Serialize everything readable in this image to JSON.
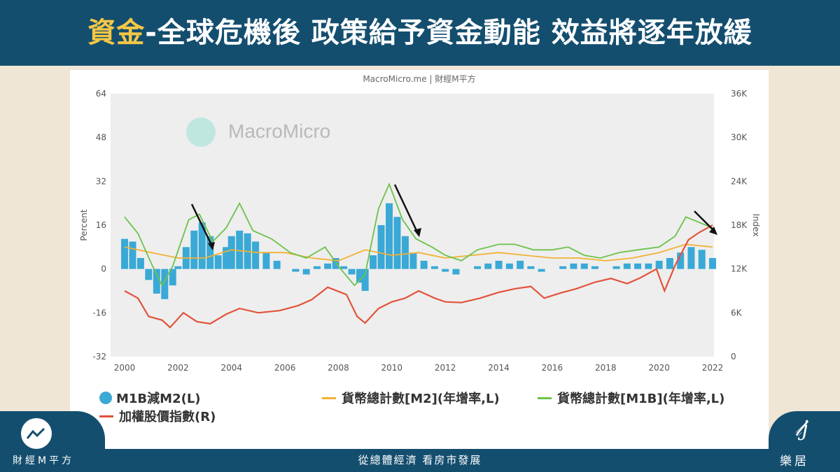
{
  "header": {
    "title_highlight": "資金",
    "title_rest": "-全球危機後 政策給予資金動能 效益將逐年放緩"
  },
  "chart": {
    "source": "MacroMicro.me | 財經M平方",
    "watermark": "MacroMicro"
  },
  "footer": {
    "center_text": "從總體經濟 看房市發展",
    "left_brand": "財經M平方",
    "right_brand": "樂居"
  },
  "colors": {
    "header_bg": "#144e6f",
    "highlight": "#f6c744",
    "m1b_minus_m2": "#3aa9d6",
    "m2": "#f2b134",
    "m1b": "#6cc24a",
    "taiex": "#e2533a"
  },
  "chart_data": {
    "type": "line",
    "x_range": [
      2000,
      2022
    ],
    "x_ticks": [
      "2000",
      "2002",
      "2004",
      "2006",
      "2008",
      "2010",
      "2012",
      "2014",
      "2016",
      "2018",
      "2020",
      "2022"
    ],
    "y_left": {
      "label": "Percent",
      "range": [
        -32,
        64
      ],
      "ticks": [
        "64",
        "48",
        "32",
        "16",
        "0",
        "-16",
        "-32"
      ]
    },
    "y_right": {
      "label": "Index",
      "range": [
        0,
        36000
      ],
      "ticks": [
        "36K",
        "30K",
        "24K",
        "18K",
        "12K",
        "6K",
        "0"
      ]
    },
    "grid": false,
    "legend_position": "bottom",
    "series": [
      {
        "name": "M1B減M2(L)",
        "type": "bar",
        "axis": "left",
        "points": [
          [
            2000,
            11
          ],
          [
            2000.3,
            10
          ],
          [
            2000.6,
            4
          ],
          [
            2000.9,
            -4
          ],
          [
            2001.2,
            -9
          ],
          [
            2001.5,
            -11
          ],
          [
            2001.8,
            -6
          ],
          [
            2002,
            1
          ],
          [
            2002.3,
            8
          ],
          [
            2002.6,
            14
          ],
          [
            2002.9,
            17
          ],
          [
            2003.2,
            12
          ],
          [
            2003.5,
            5
          ],
          [
            2003.8,
            8
          ],
          [
            2004,
            12
          ],
          [
            2004.3,
            14
          ],
          [
            2004.6,
            13
          ],
          [
            2004.9,
            10
          ],
          [
            2005.3,
            6
          ],
          [
            2005.7,
            3
          ],
          [
            2006,
            0
          ],
          [
            2006.4,
            -1
          ],
          [
            2006.8,
            -2
          ],
          [
            2007.2,
            1
          ],
          [
            2007.6,
            2
          ],
          [
            2007.9,
            4
          ],
          [
            2008.2,
            1
          ],
          [
            2008.5,
            -2
          ],
          [
            2008.8,
            -5
          ],
          [
            2009,
            -8
          ],
          [
            2009.3,
            5
          ],
          [
            2009.6,
            16
          ],
          [
            2009.9,
            24
          ],
          [
            2010.2,
            19
          ],
          [
            2010.5,
            12
          ],
          [
            2010.8,
            6
          ],
          [
            2011.2,
            3
          ],
          [
            2011.6,
            1
          ],
          [
            2012,
            -1
          ],
          [
            2012.4,
            -2
          ],
          [
            2012.8,
            0
          ],
          [
            2013.2,
            1
          ],
          [
            2013.6,
            2
          ],
          [
            2014,
            3
          ],
          [
            2014.4,
            2
          ],
          [
            2014.8,
            3
          ],
          [
            2015.2,
            1
          ],
          [
            2015.6,
            -1
          ],
          [
            2016,
            0
          ],
          [
            2016.4,
            1
          ],
          [
            2016.8,
            2
          ],
          [
            2017.2,
            2
          ],
          [
            2017.6,
            1
          ],
          [
            2018,
            0
          ],
          [
            2018.4,
            1
          ],
          [
            2018.8,
            2
          ],
          [
            2019.2,
            2
          ],
          [
            2019.6,
            2
          ],
          [
            2020,
            3
          ],
          [
            2020.4,
            4
          ],
          [
            2020.8,
            6
          ],
          [
            2021.2,
            8
          ],
          [
            2021.6,
            7
          ],
          [
            2022,
            4
          ]
        ]
      },
      {
        "name": "貨幣總計數[M2](年增率,L)",
        "type": "line",
        "axis": "left",
        "points": [
          [
            2000,
            8
          ],
          [
            2001,
            6
          ],
          [
            2002,
            4
          ],
          [
            2003,
            4
          ],
          [
            2004,
            7
          ],
          [
            2005,
            6
          ],
          [
            2006,
            6
          ],
          [
            2007,
            4
          ],
          [
            2008,
            3
          ],
          [
            2009,
            7
          ],
          [
            2010,
            5
          ],
          [
            2011,
            6
          ],
          [
            2012,
            4
          ],
          [
            2013,
            5
          ],
          [
            2014,
            6
          ],
          [
            2015,
            5
          ],
          [
            2016,
            4
          ],
          [
            2017,
            4
          ],
          [
            2018,
            3
          ],
          [
            2019,
            4
          ],
          [
            2020,
            6
          ],
          [
            2021,
            9
          ],
          [
            2022,
            8
          ]
        ]
      },
      {
        "name": "貨幣總計數[M1B](年增率,L)",
        "type": "line",
        "axis": "left",
        "points": [
          [
            2000,
            19
          ],
          [
            2000.5,
            13
          ],
          [
            2001,
            2
          ],
          [
            2001.4,
            -6
          ],
          [
            2001.8,
            1
          ],
          [
            2002.4,
            18
          ],
          [
            2002.8,
            20
          ],
          [
            2003.3,
            10
          ],
          [
            2003.8,
            15
          ],
          [
            2004.3,
            24
          ],
          [
            2004.8,
            14
          ],
          [
            2005.5,
            11
          ],
          [
            2006.2,
            6
          ],
          [
            2006.8,
            4
          ],
          [
            2007.5,
            8
          ],
          [
            2008,
            1
          ],
          [
            2008.6,
            -6
          ],
          [
            2009,
            -2
          ],
          [
            2009.5,
            22
          ],
          [
            2009.9,
            31
          ],
          [
            2010.4,
            18
          ],
          [
            2010.9,
            11
          ],
          [
            2011.5,
            8
          ],
          [
            2012,
            5
          ],
          [
            2012.6,
            3
          ],
          [
            2013.2,
            7
          ],
          [
            2014,
            9
          ],
          [
            2014.6,
            9
          ],
          [
            2015.3,
            7
          ],
          [
            2016,
            7
          ],
          [
            2016.6,
            8
          ],
          [
            2017.2,
            5
          ],
          [
            2017.8,
            4
          ],
          [
            2018.5,
            6
          ],
          [
            2019.2,
            7
          ],
          [
            2020,
            8
          ],
          [
            2020.6,
            12
          ],
          [
            2021,
            19
          ],
          [
            2021.5,
            17
          ],
          [
            2022,
            15
          ]
        ]
      },
      {
        "name": "加權股價指數(R)",
        "type": "line",
        "axis": "right",
        "points": [
          [
            2000,
            9000
          ],
          [
            2000.5,
            8000
          ],
          [
            2000.9,
            5500
          ],
          [
            2001.4,
            5000
          ],
          [
            2001.7,
            4000
          ],
          [
            2002.2,
            6000
          ],
          [
            2002.7,
            4800
          ],
          [
            2003.2,
            4500
          ],
          [
            2003.8,
            5800
          ],
          [
            2004.3,
            6600
          ],
          [
            2005,
            6000
          ],
          [
            2005.8,
            6300
          ],
          [
            2006.5,
            7000
          ],
          [
            2007,
            7800
          ],
          [
            2007.6,
            9500
          ],
          [
            2008.3,
            8500
          ],
          [
            2008.7,
            5500
          ],
          [
            2009,
            4600
          ],
          [
            2009.5,
            6600
          ],
          [
            2010,
            7500
          ],
          [
            2010.5,
            8000
          ],
          [
            2011,
            9000
          ],
          [
            2011.6,
            8000
          ],
          [
            2012,
            7500
          ],
          [
            2012.6,
            7400
          ],
          [
            2013.3,
            8000
          ],
          [
            2014,
            8800
          ],
          [
            2014.6,
            9300
          ],
          [
            2015.2,
            9600
          ],
          [
            2015.7,
            8000
          ],
          [
            2016.3,
            8700
          ],
          [
            2016.9,
            9300
          ],
          [
            2017.6,
            10200
          ],
          [
            2018.2,
            10700
          ],
          [
            2018.8,
            10000
          ],
          [
            2019.3,
            10800
          ],
          [
            2019.9,
            12000
          ],
          [
            2020.2,
            9000
          ],
          [
            2020.6,
            12500
          ],
          [
            2021.1,
            16000
          ],
          [
            2021.5,
            17000
          ],
          [
            2022,
            18000
          ]
        ]
      }
    ]
  }
}
